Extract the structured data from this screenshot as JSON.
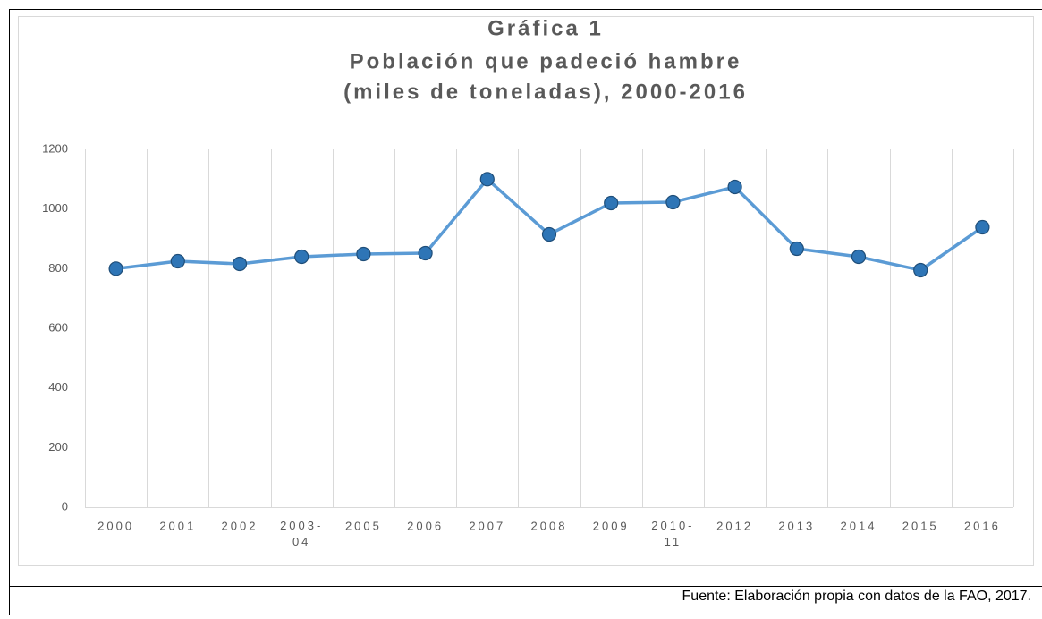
{
  "chart_data": {
    "type": "line",
    "title": [
      "Gráfica 1",
      "Población que padeció hambre",
      "(miles de toneladas), 2000-2016"
    ],
    "categories": [
      "2000",
      "2001",
      "2002",
      "2003-04",
      "2005",
      "2006",
      "2007",
      "2008",
      "2009",
      "2010-11",
      "2012",
      "2013",
      "2014",
      "2015",
      "2016"
    ],
    "series": [
      {
        "color": "#5b9bd5",
        "values": [
          800,
          825,
          816,
          840,
          849,
          852,
          1100,
          915,
          1020,
          1023,
          1074,
          867,
          840,
          795,
          939
        ]
      }
    ],
    "ylim": [
      0,
      1200
    ],
    "yticks": [
      0,
      200,
      400,
      600,
      800,
      1000,
      1200
    ]
  },
  "source": "Fuente: Elaboración propia con datos de la FAO, 2017."
}
